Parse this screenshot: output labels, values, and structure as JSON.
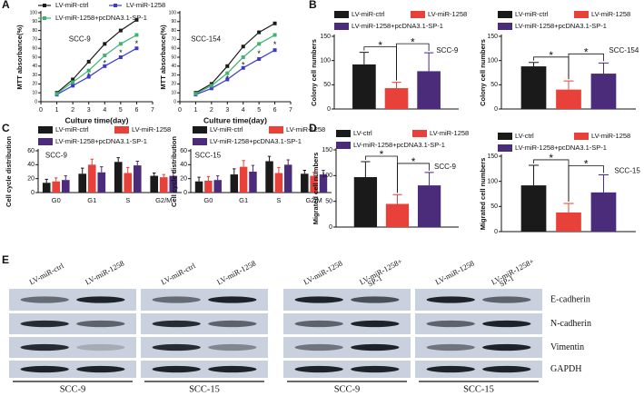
{
  "chart_data": [
    {
      "type": "line",
      "panel": "A",
      "subtitle": "SCC-9",
      "x_label": "Culture time(day)",
      "y_label": "MTT absorbance(%)",
      "x": [
        1,
        2,
        3,
        4,
        5,
        6
      ],
      "xlim": [
        0,
        7
      ],
      "xticks": [
        0,
        1,
        2,
        3,
        4,
        5,
        6,
        7
      ],
      "ylim": [
        0,
        100
      ],
      "yticks": [
        0,
        10,
        20,
        30,
        40,
        50,
        60,
        70,
        80,
        90,
        100
      ],
      "series": [
        {
          "name": "LV-miR-ctrl",
          "color": "#1a1a1a",
          "values": [
            10,
            25,
            45,
            65,
            80,
            92
          ]
        },
        {
          "name": "LV-miR-1258",
          "color": "#3a3ad0",
          "values": [
            8,
            18,
            28,
            40,
            50,
            60
          ]
        },
        {
          "name": "LV-miR-1258+pcDNA3.1-SP-1",
          "color": "#3cb371",
          "values": [
            9,
            22,
            35,
            52,
            65,
            75
          ]
        }
      ],
      "annotations": [
        "*",
        "*",
        "*",
        "*"
      ]
    },
    {
      "type": "line",
      "subtitle": "SCC-154",
      "x_label": "Culture time(day)",
      "y_label": "MTT absorbance(%)",
      "x": [
        1,
        2,
        3,
        4,
        5,
        6
      ],
      "xlim": [
        0,
        7
      ],
      "xticks": [
        0,
        1,
        2,
        3,
        4,
        5,
        6,
        7
      ],
      "ylim": [
        0,
        100
      ],
      "yticks": [
        0,
        10,
        20,
        30,
        40,
        50,
        60,
        70,
        80,
        90,
        100
      ],
      "series": [
        {
          "color": "#1a1a1a",
          "values": [
            10,
            20,
            40,
            62,
            78,
            88
          ]
        },
        {
          "color": "#3a3ad0",
          "values": [
            8,
            15,
            25,
            38,
            48,
            58
          ]
        },
        {
          "color": "#3cb371",
          "values": [
            9,
            18,
            32,
            50,
            65,
            75
          ]
        }
      ],
      "annotations": [
        "*",
        "*",
        "*",
        "*"
      ]
    },
    {
      "type": "bar",
      "panel": "B",
      "subtitle": "SCC-9",
      "y_label": "Colony cell numbers",
      "categories": [
        null
      ],
      "ylim": [
        0,
        150
      ],
      "yticks": [
        0,
        50,
        100,
        150
      ],
      "series": [
        {
          "name": "LV-miR-ctrl",
          "color": "#1a1a1a",
          "values": [
            92
          ],
          "errors": [
            25
          ]
        },
        {
          "name": "LV-miR-1258",
          "color": "#e8413a",
          "values": [
            43
          ],
          "errors": [
            12
          ]
        },
        {
          "name": "LV-miR-1258+pcDNA3.1-SP-1",
          "color": "#4b2c7a",
          "values": [
            78
          ],
          "errors": [
            38
          ]
        }
      ],
      "annotations": [
        "*",
        "*"
      ]
    },
    {
      "type": "bar",
      "subtitle": "SCC-154",
      "y_label": "Colony cell numbers",
      "categories": [
        null
      ],
      "ylim": [
        0,
        150
      ],
      "yticks": [
        0,
        50,
        100,
        150
      ],
      "series": [
        {
          "name": "LV-miR-ctrl",
          "color": "#1a1a1a",
          "values": [
            88
          ],
          "errors": [
            8
          ]
        },
        {
          "name": "LV-miR-1258",
          "color": "#e8413a",
          "values": [
            40
          ],
          "errors": [
            18
          ]
        },
        {
          "name": "LV-miR-1258+pcDNA3.1-SP-1",
          "color": "#4b2c7a",
          "values": [
            73
          ],
          "errors": [
            22
          ]
        }
      ],
      "annotations": [
        "*",
        "*"
      ]
    },
    {
      "type": "bar",
      "panel": "C",
      "subtitle": "SCC-9",
      "y_label": "Cell cycle distribution",
      "categories": [
        "G0",
        "G1",
        "S",
        "G2/M"
      ],
      "ylim": [
        0,
        60
      ],
      "yticks": [
        0,
        20,
        40,
        60
      ],
      "series": [
        {
          "name": "LV-miR-ctrl",
          "color": "#1a1a1a",
          "values": [
            14,
            27,
            44,
            24
          ],
          "errors": [
            5,
            8,
            6,
            4
          ]
        },
        {
          "name": "LV-miR-1258",
          "color": "#e8413a",
          "values": [
            16,
            40,
            28,
            22
          ],
          "errors": [
            5,
            8,
            8,
            4
          ]
        },
        {
          "name": "LV-miR-1258+pcDNA3.1-SP-1",
          "color": "#4b2c7a",
          "values": [
            18,
            29,
            39,
            24
          ],
          "errors": [
            6,
            8,
            6,
            5
          ]
        }
      ]
    },
    {
      "type": "bar",
      "subtitle": "SCC-15",
      "y_label": "Cell cycle distribution",
      "categories": [
        "G0",
        "G1",
        "S",
        "G2/M"
      ],
      "ylim": [
        0,
        60
      ],
      "yticks": [
        0,
        20,
        40,
        60
      ],
      "series": [
        {
          "name": "LV-miR-ctrl",
          "color": "#1a1a1a",
          "values": [
            16,
            26,
            45,
            27
          ],
          "errors": [
            6,
            8,
            7,
            5
          ]
        },
        {
          "name": "LV-miR-1258",
          "color": "#e8413a",
          "values": [
            17,
            37,
            28,
            24
          ],
          "errors": [
            6,
            9,
            8,
            5
          ]
        },
        {
          "name": "LV-miR-1258+pcDNA3.1-SP-1",
          "color": "#4b2c7a",
          "values": [
            18,
            30,
            40,
            26
          ],
          "errors": [
            6,
            9,
            7,
            6
          ]
        }
      ]
    },
    {
      "type": "bar",
      "panel": "D",
      "subtitle": "SCC-9",
      "y_label": "Migrated cell numbers",
      "categories": [
        null
      ],
      "ylim": [
        0,
        150
      ],
      "yticks": [
        0,
        50,
        100,
        150
      ],
      "series": [
        {
          "name": "LV-ctrl",
          "color": "#1a1a1a",
          "values": [
            97
          ],
          "errors": [
            30
          ]
        },
        {
          "name": "LV-miR-1258",
          "color": "#e8413a",
          "values": [
            45
          ],
          "errors": [
            18
          ]
        },
        {
          "name": "LV-miR-1258+pcDNA3.1-SP-1",
          "color": "#4b2c7a",
          "values": [
            81
          ],
          "errors": [
            25
          ]
        }
      ],
      "annotations": [
        "*",
        "*"
      ]
    },
    {
      "type": "bar",
      "subtitle": "SCC-15",
      "y_label": "Migrated cell numbers",
      "categories": [
        null
      ],
      "ylim": [
        0,
        150
      ],
      "yticks": [
        0,
        50,
        100,
        150
      ],
      "series": [
        {
          "name": "LV-ctrl",
          "color": "#1a1a1a",
          "values": [
            92
          ],
          "errors": [
            40
          ]
        },
        {
          "name": "LV-miR-1258",
          "color": "#e8413a",
          "values": [
            38
          ],
          "errors": [
            18
          ]
        },
        {
          "name": "LV-miR-1258+pcDNA3.1-SP-1",
          "color": "#4b2c7a",
          "values": [
            78
          ],
          "errors": [
            35
          ]
        }
      ],
      "annotations": [
        "*",
        "*"
      ]
    }
  ],
  "blot": {
    "panel": "E",
    "groups": [
      {
        "columns": [
          [
            "LV-miR-ctrl"
          ],
          [
            "LV-miR-1258"
          ]
        ],
        "cell_line": "SCC-9"
      },
      {
        "columns": [
          [
            "LV-miR-ctrl"
          ],
          [
            "LV-miR-1258"
          ]
        ],
        "cell_line": "SCC-15"
      },
      {
        "columns": [
          [
            "LV-miR-1258"
          ],
          [
            "LV-miR-1258+",
            "SP-1"
          ]
        ],
        "cell_line": "SCC-9"
      },
      {
        "columns": [
          [
            "LV-miR-1258"
          ],
          [
            "LV-miR-1258+",
            "SP-1"
          ]
        ],
        "cell_line": "SCC-15"
      }
    ],
    "rows": [
      "E-cadherin",
      "N-cadherin",
      "Vimentin",
      "GAPDH"
    ]
  }
}
